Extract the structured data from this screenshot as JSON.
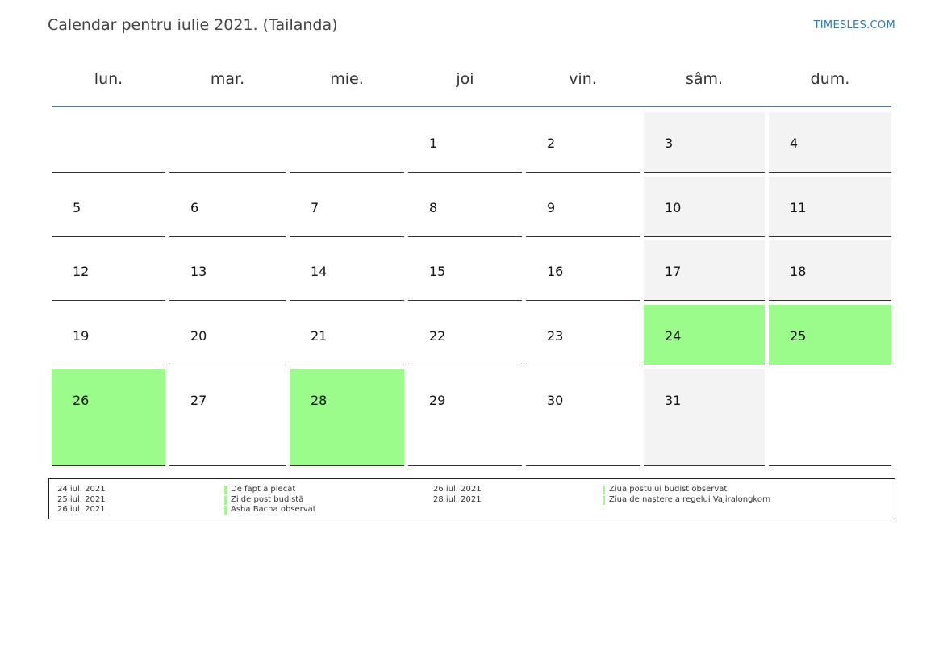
{
  "header": {
    "title": "Calendar pentru iulie 2021. (Tailanda)",
    "site": "TIMESLES.COM"
  },
  "colors": {
    "holiday": "#9bfb8b",
    "weekend": "#f3f3f3",
    "header_rule": "#5a7594",
    "site_link": "#2f7ab8"
  },
  "calendar": {
    "weekdays": [
      "lun.",
      "mar.",
      "mie.",
      "joi",
      "vin.",
      "sâm.",
      "dum."
    ],
    "weeks": [
      [
        "",
        "",
        "",
        "1",
        "2",
        "3",
        "4"
      ],
      [
        "5",
        "6",
        "7",
        "8",
        "9",
        "10",
        "11"
      ],
      [
        "12",
        "13",
        "14",
        "15",
        "16",
        "17",
        "18"
      ],
      [
        "19",
        "20",
        "21",
        "22",
        "23",
        "24",
        "25"
      ],
      [
        "26",
        "27",
        "28",
        "29",
        "30",
        "31",
        ""
      ]
    ],
    "holidays": [
      "24",
      "25",
      "26",
      "28"
    ]
  },
  "legend": {
    "left": [
      {
        "date": "24 iul. 2021",
        "name": "De fapt a plecat"
      },
      {
        "date": "25 iul. 2021",
        "name": "Zi de post budistă"
      },
      {
        "date": "26 iul. 2021",
        "name": "Asha Bacha observat"
      }
    ],
    "right": [
      {
        "date": "26 iul. 2021",
        "name": "Ziua postului budist observat"
      },
      {
        "date": "28 iul. 2021",
        "name": "Ziua de naștere a regelui Vajiralongkorn"
      }
    ]
  }
}
